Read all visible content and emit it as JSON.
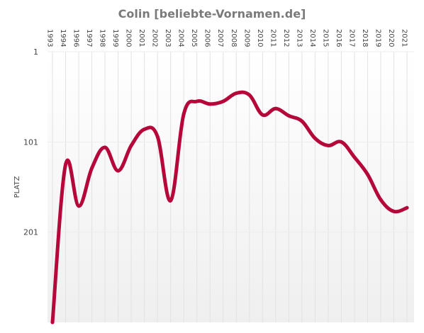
{
  "chart_data": {
    "type": "line",
    "title": "Colin [beliebte-Vornamen.de]",
    "ylabel": "PLATZ",
    "y_inverted": true,
    "ylim": [
      1,
      301
    ],
    "y_ticks": [
      1,
      101,
      201
    ],
    "grid": true,
    "line_color": "#b5073a",
    "background_gradient": [
      "#ffffff",
      "#efefef"
    ],
    "categories": [
      "1993",
      "1994",
      "1996",
      "1997",
      "1998",
      "1999",
      "2000",
      "2001",
      "2002",
      "2003",
      "2004",
      "2005",
      "2006",
      "2007",
      "2008",
      "2009",
      "2010",
      "2011",
      "2012",
      "2013",
      "2014",
      "2015",
      "2016",
      "2017",
      "2018",
      "2019",
      "2020",
      "2021"
    ],
    "series": [
      {
        "values": [
          301,
          126,
          172,
          130,
          107,
          133,
          105,
          87,
          95,
          166,
          70,
          56,
          59,
          56,
          47,
          49,
          71,
          64,
          72,
          78,
          97,
          105,
          101,
          118,
          137,
          165,
          178,
          174
        ]
      }
    ]
  }
}
